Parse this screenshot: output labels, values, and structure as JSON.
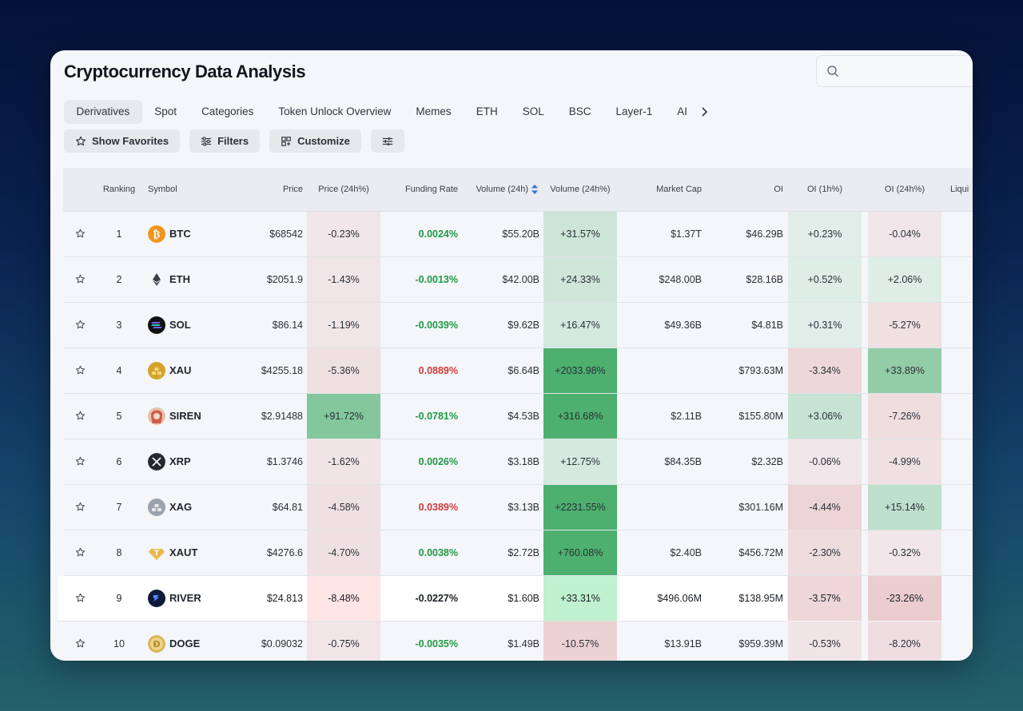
{
  "title": "Cryptocurrency Data Analysis",
  "search": {
    "placeholder": ""
  },
  "tabs": [
    "Derivatives",
    "Spot",
    "Categories",
    "Token Unlock Overview",
    "Memes",
    "ETH",
    "SOL",
    "BSC",
    "Layer-1",
    "AI"
  ],
  "active_tab": "Derivatives",
  "toolbar": {
    "favorites": "Show Favorites",
    "filters": "Filters",
    "customize": "Customize"
  },
  "columns": {
    "ranking": "Ranking",
    "symbol": "Symbol",
    "price": "Price",
    "price24": "Price (24h%)",
    "funding": "Funding Rate",
    "volume": "Volume (24h)",
    "volume24": "Volume (24h%)",
    "mcap": "Market Cap",
    "oi": "OI",
    "oi1h": "OI (1h%)",
    "oi24": "OI (24h%)",
    "liq": "Liqui"
  },
  "colors": {
    "positive": "#1f9a45",
    "negative": "#d13b3b",
    "highlight_row": "#ffffff"
  },
  "rows": [
    {
      "rank": "1",
      "symbol": "BTC",
      "icon": "bitcoin-icon",
      "price": "$68542",
      "p24": "-0.23%",
      "p24v": -0.23,
      "funding": "0.0024%",
      "fsign": "pos",
      "volume": "$55.20B",
      "v24": "+31.57%",
      "v24v": 31.57,
      "mcap": "$1.37T",
      "oi": "$46.29B",
      "oi1h": "+0.23%",
      "oi1hv": 0.23,
      "oi24": "-0.04%",
      "oi24v": -0.04
    },
    {
      "rank": "2",
      "symbol": "ETH",
      "icon": "ethereum-icon",
      "price": "$2051.9",
      "p24": "-1.43%",
      "p24v": -1.43,
      "funding": "-0.0013%",
      "fsign": "pos",
      "volume": "$42.00B",
      "v24": "+24.33%",
      "v24v": 24.33,
      "mcap": "$248.00B",
      "oi": "$28.16B",
      "oi1h": "+0.52%",
      "oi1hv": 0.52,
      "oi24": "+2.06%",
      "oi24v": 2.06
    },
    {
      "rank": "3",
      "symbol": "SOL",
      "icon": "solana-icon",
      "price": "$86.14",
      "p24": "-1.19%",
      "p24v": -1.19,
      "funding": "-0.0039%",
      "fsign": "pos",
      "volume": "$9.62B",
      "v24": "+16.47%",
      "v24v": 16.47,
      "mcap": "$49.36B",
      "oi": "$4.81B",
      "oi1h": "+0.31%",
      "oi1hv": 0.31,
      "oi24": "-5.27%",
      "oi24v": -5.27
    },
    {
      "rank": "4",
      "symbol": "XAU",
      "icon": "gold-icon",
      "price": "$4255.18",
      "p24": "-5.36%",
      "p24v": -5.36,
      "funding": "0.0889%",
      "fsign": "neg",
      "volume": "$6.64B",
      "v24": "+2033.98%",
      "v24v": 2033.98,
      "mcap": "",
      "oi": "$793.63M",
      "oi1h": "-3.34%",
      "oi1hv": -3.34,
      "oi24": "+33.89%",
      "oi24v": 33.89
    },
    {
      "rank": "5",
      "symbol": "SIREN",
      "icon": "siren-icon",
      "price": "$2.91488",
      "p24": "+91.72%",
      "p24v": 91.72,
      "funding": "-0.0781%",
      "fsign": "pos",
      "volume": "$4.53B",
      "v24": "+316.68%",
      "v24v": 316.68,
      "mcap": "$2.11B",
      "oi": "$155.80M",
      "oi1h": "+3.06%",
      "oi1hv": 3.06,
      "oi24": "-7.26%",
      "oi24v": -7.26
    },
    {
      "rank": "6",
      "symbol": "XRP",
      "icon": "xrp-icon",
      "price": "$1.3746",
      "p24": "-1.62%",
      "p24v": -1.62,
      "funding": "0.0026%",
      "fsign": "pos",
      "volume": "$3.18B",
      "v24": "+12.75%",
      "v24v": 12.75,
      "mcap": "$84.35B",
      "oi": "$2.32B",
      "oi1h": "-0.06%",
      "oi1hv": -0.06,
      "oi24": "-4.99%",
      "oi24v": -4.99
    },
    {
      "rank": "7",
      "symbol": "XAG",
      "icon": "silver-icon",
      "price": "$64.81",
      "p24": "-4.58%",
      "p24v": -4.58,
      "funding": "0.0389%",
      "fsign": "neg",
      "volume": "$3.13B",
      "v24": "+2231.55%",
      "v24v": 2231.55,
      "mcap": "",
      "oi": "$301.16M",
      "oi1h": "-4.44%",
      "oi1hv": -4.44,
      "oi24": "+15.14%",
      "oi24v": 15.14
    },
    {
      "rank": "8",
      "symbol": "XAUT",
      "icon": "tether-gold-icon",
      "price": "$4276.6",
      "p24": "-4.70%",
      "p24v": -4.7,
      "funding": "0.0038%",
      "fsign": "pos",
      "volume": "$2.72B",
      "v24": "+760.08%",
      "v24v": 760.08,
      "mcap": "$2.40B",
      "oi": "$456.72M",
      "oi1h": "-2.30%",
      "oi1hv": -2.3,
      "oi24": "-0.32%",
      "oi24v": -0.32
    },
    {
      "rank": "9",
      "symbol": "RIVER",
      "icon": "river-icon",
      "price": "$24.813",
      "p24": "-8.48%",
      "p24v": -8.48,
      "funding": "-0.0227%",
      "fsign": "pos",
      "volume": "$1.60B",
      "v24": "+33.31%",
      "v24v": 33.31,
      "mcap": "$496.06M",
      "oi": "$138.95M",
      "oi1h": "-3.57%",
      "oi1hv": -3.57,
      "oi24": "-23.26%",
      "oi24v": -23.26,
      "highlighted": true
    },
    {
      "rank": "10",
      "symbol": "DOGE",
      "icon": "dogecoin-icon",
      "price": "$0.09032",
      "p24": "-0.75%",
      "p24v": -0.75,
      "funding": "-0.0035%",
      "fsign": "pos",
      "volume": "$1.49B",
      "v24": "-10.57%",
      "v24v": -10.57,
      "mcap": "$13.91B",
      "oi": "$959.39M",
      "oi1h": "-0.53%",
      "oi1hv": -0.53,
      "oi24": "-8.20%",
      "oi24v": -8.2
    }
  ]
}
